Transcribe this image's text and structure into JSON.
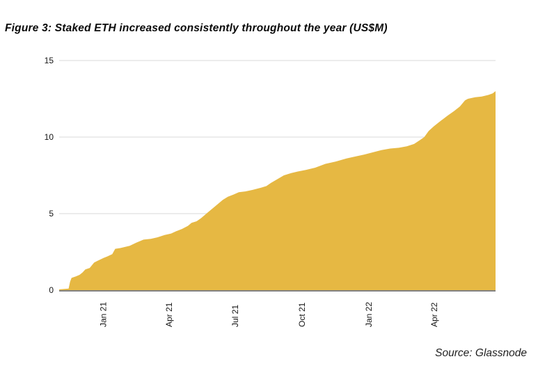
{
  "figure": {
    "title": "Figure 3: Staked ETH increased consistently throughout the year (US$M)",
    "source": "Source: Glassnode"
  },
  "colors": {
    "area_fill": "#E6B843",
    "gridline": "#DADADA",
    "axis_line": "#595959",
    "tick_text": "#151515"
  },
  "chart_data": {
    "type": "area",
    "title": "Figure 3: Staked ETH increased consistently throughout the year (US$M)",
    "series_name": "Staked ETH (US$M)",
    "xlabel": "",
    "ylabel": "",
    "ylim": [
      0,
      15
    ],
    "y_ticks": [
      0,
      5,
      10,
      15
    ],
    "x_ticks": [
      {
        "label": "Jan 21",
        "date": "2021-01-01"
      },
      {
        "label": "Apr 21",
        "date": "2021-04-01"
      },
      {
        "label": "Jul 21",
        "date": "2021-07-01"
      },
      {
        "label": "Oct 21",
        "date": "2021-10-01"
      },
      {
        "label": "Jan 22",
        "date": "2022-01-01"
      },
      {
        "label": "Apr 22",
        "date": "2022-04-01"
      }
    ],
    "x_domain": [
      "2020-11-01",
      "2022-06-24"
    ],
    "grid": "horizontal-only",
    "legend": "none",
    "points": [
      [
        "2020-11-01",
        0.05
      ],
      [
        "2020-11-14",
        0.1
      ],
      [
        "2020-11-16",
        0.55
      ],
      [
        "2020-11-18",
        0.8
      ],
      [
        "2020-11-24",
        0.9
      ],
      [
        "2020-11-29",
        1.0
      ],
      [
        "2020-12-03",
        1.15
      ],
      [
        "2020-12-07",
        1.35
      ],
      [
        "2020-12-13",
        1.45
      ],
      [
        "2020-12-19",
        1.8
      ],
      [
        "2020-12-23",
        1.9
      ],
      [
        "2021-01-01",
        2.1
      ],
      [
        "2021-01-06",
        2.2
      ],
      [
        "2021-01-13",
        2.35
      ],
      [
        "2021-01-17",
        2.7
      ],
      [
        "2021-01-24",
        2.75
      ],
      [
        "2021-02-06",
        2.9
      ],
      [
        "2021-02-15",
        3.1
      ],
      [
        "2021-02-25",
        3.3
      ],
      [
        "2021-03-07",
        3.35
      ],
      [
        "2021-03-16",
        3.45
      ],
      [
        "2021-03-26",
        3.6
      ],
      [
        "2021-04-04",
        3.7
      ],
      [
        "2021-04-11",
        3.85
      ],
      [
        "2021-04-19",
        4.0
      ],
      [
        "2021-04-27",
        4.2
      ],
      [
        "2021-05-02",
        4.4
      ],
      [
        "2021-05-09",
        4.5
      ],
      [
        "2021-05-15",
        4.7
      ],
      [
        "2021-05-25",
        5.1
      ],
      [
        "2021-06-04",
        5.5
      ],
      [
        "2021-06-14",
        5.9
      ],
      [
        "2021-06-21",
        6.1
      ],
      [
        "2021-06-29",
        6.25
      ],
      [
        "2021-07-06",
        6.4
      ],
      [
        "2021-07-15",
        6.45
      ],
      [
        "2021-07-25",
        6.55
      ],
      [
        "2021-08-06",
        6.7
      ],
      [
        "2021-08-13",
        6.8
      ],
      [
        "2021-08-19",
        7.0
      ],
      [
        "2021-08-28",
        7.25
      ],
      [
        "2021-09-06",
        7.5
      ],
      [
        "2021-09-16",
        7.65
      ],
      [
        "2021-09-25",
        7.75
      ],
      [
        "2021-10-06",
        7.85
      ],
      [
        "2021-10-19",
        8.0
      ],
      [
        "2021-11-02",
        8.25
      ],
      [
        "2021-11-16",
        8.4
      ],
      [
        "2021-12-01",
        8.6
      ],
      [
        "2021-12-15",
        8.75
      ],
      [
        "2021-12-25",
        8.85
      ],
      [
        "2022-01-06",
        9.0
      ],
      [
        "2022-01-18",
        9.15
      ],
      [
        "2022-01-30",
        9.25
      ],
      [
        "2022-02-11",
        9.3
      ],
      [
        "2022-02-22",
        9.4
      ],
      [
        "2022-03-04",
        9.55
      ],
      [
        "2022-03-12",
        9.8
      ],
      [
        "2022-03-18",
        10.0
      ],
      [
        "2022-03-24",
        10.4
      ],
      [
        "2022-03-31",
        10.7
      ],
      [
        "2022-04-08",
        11.0
      ],
      [
        "2022-04-19",
        11.4
      ],
      [
        "2022-04-28",
        11.7
      ],
      [
        "2022-05-06",
        12.0
      ],
      [
        "2022-05-13",
        12.4
      ],
      [
        "2022-05-17",
        12.5
      ],
      [
        "2022-05-27",
        12.6
      ],
      [
        "2022-06-05",
        12.65
      ],
      [
        "2022-06-14",
        12.75
      ],
      [
        "2022-06-20",
        12.85
      ],
      [
        "2022-06-24",
        13.0
      ]
    ]
  }
}
